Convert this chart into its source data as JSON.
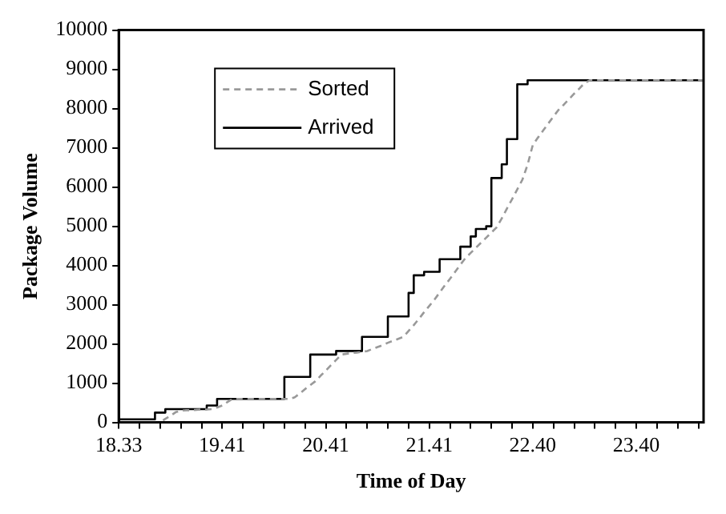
{
  "chart_data": {
    "type": "line",
    "xlabel": "Time of Day",
    "ylabel": "Package Volume",
    "categories": [
      "18.33",
      null,
      null,
      null,
      null,
      null,
      null,
      null,
      null,
      null,
      null,
      null,
      null,
      null,
      null,
      null,
      null,
      null,
      null,
      null,
      "19.41",
      null,
      null,
      null,
      null,
      null,
      null,
      null,
      null,
      null,
      null,
      null,
      null,
      null,
      null,
      null,
      null,
      null,
      null,
      null,
      "20.41",
      null,
      null,
      null,
      null,
      null,
      null,
      null,
      null,
      null,
      null,
      null,
      null,
      null,
      null,
      null,
      null,
      null,
      null,
      null,
      "21.41",
      null,
      null,
      null,
      null,
      null,
      null,
      null,
      null,
      null,
      null,
      null,
      null,
      null,
      null,
      null,
      null,
      null,
      null,
      null,
      "22.40",
      null,
      null,
      null,
      null,
      null,
      null,
      null,
      null,
      null,
      null,
      null,
      null,
      null,
      null,
      null,
      null,
      null,
      null,
      null,
      "23.40",
      null,
      null,
      null,
      null,
      null,
      null,
      null,
      null,
      null,
      null,
      null,
      null,
      null
    ],
    "ylim": [
      0,
      10000
    ],
    "yticks": [
      0,
      1000,
      2000,
      3000,
      4000,
      5000,
      6000,
      7000,
      8000,
      9000,
      10000
    ],
    "grid": false,
    "legend": "top left",
    "marker": "none",
    "series": [
      {
        "name": "Sorted",
        "color": "#999999",
        "line_style": "dashed",
        "values": [
          0,
          0,
          0,
          0,
          0,
          0,
          0,
          0,
          0,
          90,
          170,
          260,
          300,
          310,
          310,
          320,
          330,
          330,
          340,
          380,
          430,
          520,
          600,
          600,
          600,
          600,
          600,
          600,
          600,
          600,
          600,
          600,
          600,
          600,
          640,
          740,
          850,
          950,
          1050,
          1190,
          1320,
          1460,
          1590,
          1730,
          1750,
          1770,
          1780,
          1800,
          1820,
          1870,
          1920,
          1970,
          2030,
          2080,
          2130,
          2180,
          2330,
          2480,
          2640,
          2810,
          2970,
          3130,
          3310,
          3490,
          3660,
          3840,
          4020,
          4190,
          4320,
          4450,
          4580,
          4710,
          4840,
          4970,
          5200,
          5450,
          5690,
          5940,
          6190,
          6570,
          7070,
          7260,
          7440,
          7620,
          7800,
          7970,
          8100,
          8240,
          8380,
          8510,
          8650,
          8720,
          8720,
          8720,
          8720,
          8720,
          8720,
          8720,
          8720,
          8720,
          8720,
          8720,
          8720,
          8720,
          8720,
          8720,
          8720,
          8720,
          8720,
          8720,
          8720,
          8720,
          8720,
          8720
        ]
      },
      {
        "name": "Arrived",
        "type": "step",
        "color": "#000000",
        "line_style": "solid",
        "values": [
          80,
          80,
          80,
          80,
          80,
          80,
          80,
          80,
          250,
          250,
          340,
          340,
          340,
          340,
          340,
          340,
          340,
          340,
          430,
          430,
          600,
          600,
          600,
          600,
          600,
          600,
          600,
          600,
          600,
          600,
          600,
          600,
          600,
          1160,
          1160,
          1160,
          1160,
          1160,
          1730,
          1730,
          1730,
          1730,
          1730,
          1820,
          1820,
          1820,
          1820,
          1820,
          2180,
          2180,
          2180,
          2180,
          2180,
          2700,
          2700,
          2700,
          2700,
          3300,
          3750,
          3750,
          3840,
          3840,
          3840,
          4160,
          4160,
          4160,
          4160,
          4480,
          4480,
          4740,
          4930,
          4930,
          5000,
          6230,
          6230,
          6580,
          7220,
          7220,
          8620,
          8620,
          8720,
          8720,
          8720,
          8720,
          8720,
          8720,
          8720,
          8720,
          8720,
          8720,
          8720,
          8720,
          8720,
          8720,
          8720,
          8720,
          8720,
          8720,
          8720,
          8720,
          8720,
          8720,
          8720,
          8720,
          8720,
          8720,
          8720,
          8720,
          8720,
          8720,
          8720,
          8720,
          8720,
          8720
        ]
      }
    ]
  }
}
